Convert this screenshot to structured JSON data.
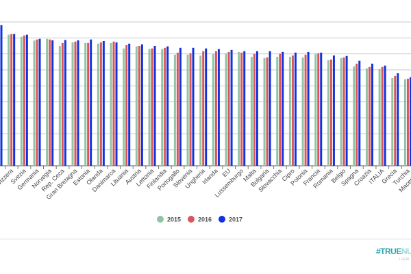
{
  "chart_data": {
    "type": "bar",
    "title": "",
    "xlabel": "",
    "ylabel": "",
    "ylim": [
      0,
      9
    ],
    "grid": true,
    "legend_position": "bottom",
    "categories": [
      "",
      "Svizzera",
      "Svezia",
      "Germania",
      "Norvegia",
      "Rep. Ceca",
      "Gran Bretagna",
      "Estonia",
      "Olanda",
      "Danimarca",
      "Lituania",
      "Austria",
      "Lettonia",
      "Finlandia",
      "Portogallo",
      "Slovenia",
      "Ungheria",
      "Irlanda",
      "EU",
      "Lussemburgo",
      "Malta",
      "Bulgaria",
      "Slovacchia",
      "Cipro",
      "Polonia",
      "Francia",
      "Romania",
      "Belgio",
      "Spagna",
      "Croazia",
      "ITALIA",
      "Grecia",
      "Turchia",
      "Macedonia"
    ],
    "series": [
      {
        "name": "2015",
        "color": "#8fc4a6",
        "values": [
          null,
          8.2,
          8.07,
          7.83,
          7.94,
          7.5,
          7.72,
          7.68,
          7.64,
          7.68,
          7.34,
          7.47,
          7.3,
          7.3,
          6.95,
          6.95,
          6.9,
          6.99,
          7.04,
          7.12,
          6.82,
          6.74,
          6.82,
          6.82,
          6.78,
          6.99,
          6.6,
          6.74,
          6.22,
          6.09,
          6.05,
          5.49,
          5.41,
          null
        ]
      },
      {
        "name": "2016",
        "color": "#d9575b",
        "values": [
          null,
          8.24,
          8.15,
          7.9,
          7.9,
          7.68,
          7.77,
          7.68,
          7.72,
          7.77,
          7.55,
          7.5,
          7.34,
          7.38,
          7.08,
          7.04,
          7.17,
          7.17,
          7.12,
          7.08,
          7.0,
          6.78,
          7.0,
          6.9,
          6.95,
          7.04,
          6.65,
          6.78,
          6.39,
          6.18,
          6.18,
          5.62,
          5.45,
          null
        ]
      },
      {
        "name": "2017",
        "color": "#1133dd",
        "values": [
          8.8,
          8.24,
          8.2,
          7.94,
          7.85,
          7.87,
          7.85,
          7.9,
          7.8,
          7.72,
          7.64,
          7.6,
          7.5,
          7.47,
          7.38,
          7.38,
          7.34,
          7.3,
          7.25,
          7.17,
          7.17,
          7.17,
          7.12,
          7.08,
          7.12,
          7.08,
          6.9,
          6.87,
          6.57,
          6.39,
          6.27,
          5.79,
          5.54,
          null
        ]
      }
    ]
  },
  "watermark": {
    "main": "#TRUE",
    "main_light": "NUM",
    "sub": "I VERI"
  }
}
